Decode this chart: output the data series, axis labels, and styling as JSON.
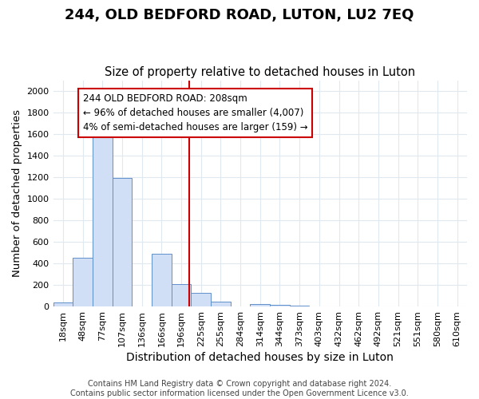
{
  "title": "244, OLD BEDFORD ROAD, LUTON, LU2 7EQ",
  "subtitle": "Size of property relative to detached houses in Luton",
  "xlabel": "Distribution of detached houses by size in Luton",
  "ylabel": "Number of detached properties",
  "bar_labels": [
    "18sqm",
    "48sqm",
    "77sqm",
    "107sqm",
    "136sqm",
    "166sqm",
    "196sqm",
    "225sqm",
    "255sqm",
    "284sqm",
    "314sqm",
    "344sqm",
    "373sqm",
    "403sqm",
    "432sqm",
    "462sqm",
    "492sqm",
    "521sqm",
    "551sqm",
    "580sqm",
    "610sqm"
  ],
  "bar_values": [
    35,
    455,
    1600,
    1190,
    0,
    490,
    210,
    125,
    45,
    0,
    25,
    15,
    10,
    0,
    0,
    0,
    0,
    0,
    0,
    0,
    0
  ],
  "bar_color": "#d0dff5",
  "bar_edge_color": "#6090cc",
  "ylim": [
    0,
    2100
  ],
  "yticks": [
    0,
    200,
    400,
    600,
    800,
    1000,
    1200,
    1400,
    1600,
    1800,
    2000
  ],
  "vline_color": "#cc0000",
  "annotation_title": "244 OLD BEDFORD ROAD: 208sqm",
  "annotation_line2": "← 96% of detached houses are smaller (4,007)",
  "annotation_line3": "4% of semi-detached houses are larger (159) →",
  "annotation_box_color": "#cc0000",
  "background_color": "#ffffff",
  "grid_color": "#e0e8f0",
  "footer_line1": "Contains HM Land Registry data © Crown copyright and database right 2024.",
  "footer_line2": "Contains public sector information licensed under the Open Government Licence v3.0.",
  "title_fontsize": 13,
  "subtitle_fontsize": 10.5,
  "tick_fontsize": 8,
  "ylabel_fontsize": 9.5,
  "xlabel_fontsize": 10,
  "footer_fontsize": 7
}
